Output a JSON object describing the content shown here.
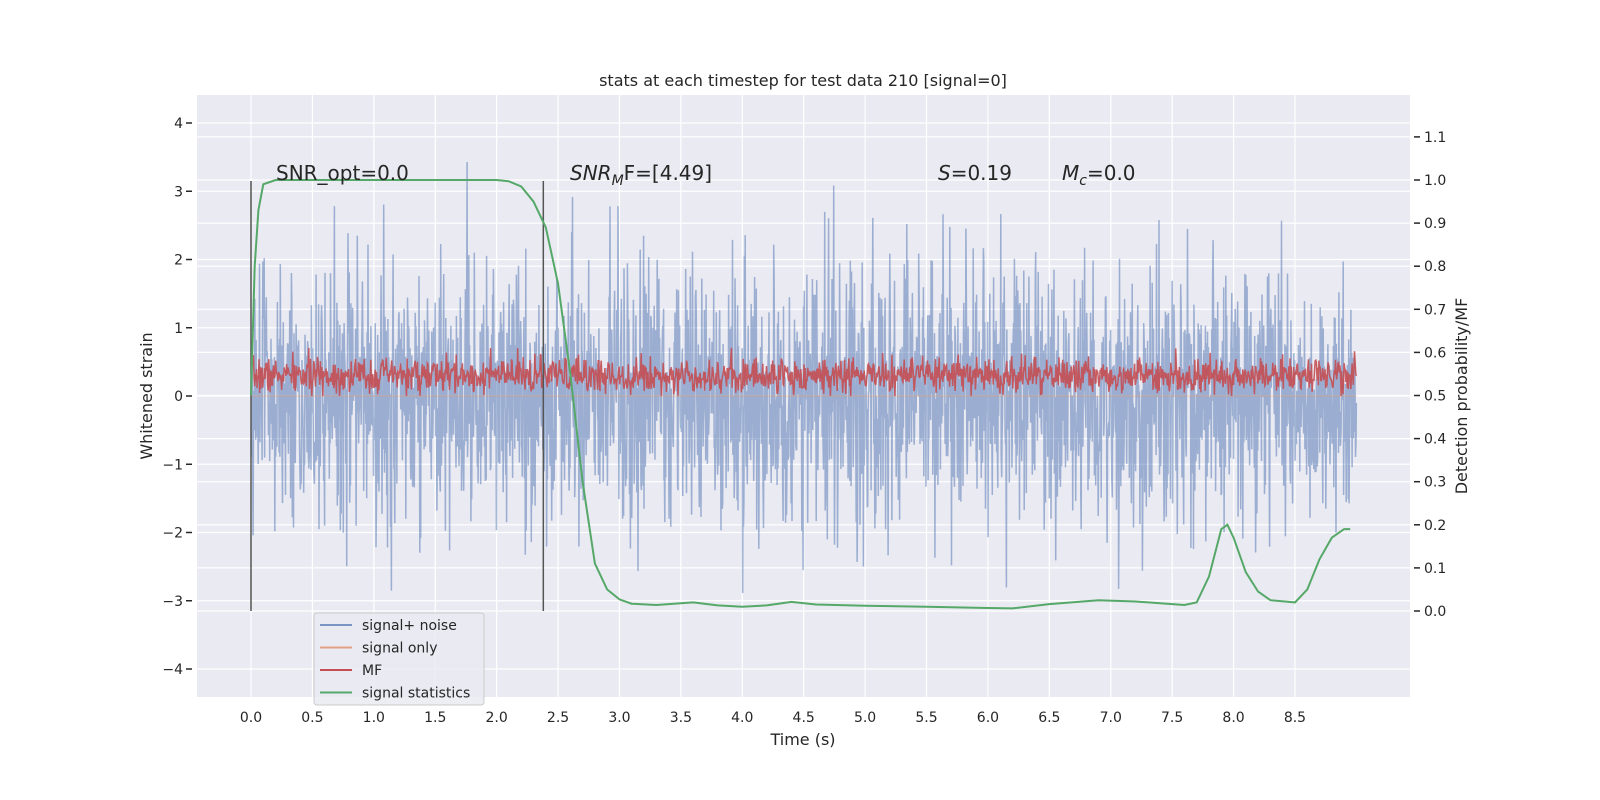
{
  "chart_data": {
    "type": "line",
    "title": "stats at each timestep for test data 210 [signal=0]",
    "xlabel": "Time (s)",
    "ylabel": "Whitened strain",
    "ylabel_right": "Detection probability/MF",
    "xlim": [
      -0.44,
      9.44
    ],
    "ylim": [
      -4.4,
      4.4
    ],
    "ylim_right": [
      -0.2,
      1.2
    ],
    "grid": true,
    "xticks": [
      "0.0",
      "0.5",
      "1.0",
      "1.5",
      "2.0",
      "2.5",
      "3.0",
      "3.5",
      "4.0",
      "4.5",
      "5.0",
      "5.5",
      "6.0",
      "6.5",
      "7.0",
      "7.5",
      "8.0",
      "8.5"
    ],
    "yticks": [
      "−4",
      "−3",
      "−2",
      "−1",
      "0",
      "1",
      "2",
      "3",
      "4"
    ],
    "yticks_right": [
      "0.0",
      "0.1",
      "0.2",
      "0.3",
      "0.4",
      "0.5",
      "0.6",
      "0.7",
      "0.8",
      "0.9",
      "1.0",
      "1.1"
    ],
    "annotations": [
      "SNR_opt=0.0",
      "SNR",
      "M",
      "F=[4.49]",
      "S",
      "=0.19",
      "M",
      "c",
      "=0.0"
    ],
    "legend": {
      "placement": "lower-left",
      "entries": [
        {
          "label": "signal+ noise",
          "color": "#4c72b0"
        },
        {
          "label": "signal only",
          "color": "#dd8452"
        },
        {
          "label": "MF",
          "color": "#c44e52"
        },
        {
          "label": "signal statistics",
          "color": "#55a868"
        }
      ]
    },
    "vertical_markers": {
      "x": [
        0.0,
        2.38
      ],
      "y_range": [
        -3.15,
        3.15
      ],
      "color": "#555555"
    },
    "series": [
      {
        "name": "signal+ noise",
        "axis": "left",
        "color": "#4c72b0",
        "generated": {
          "t_range": [
            0,
            9.0
          ],
          "samples": 2600,
          "std": 0.95,
          "mean": 0,
          "extreme_range": [
            -4.0,
            4.0
          ],
          "seed": 210
        }
      },
      {
        "name": "signal only",
        "axis": "left",
        "color": "#dd8452",
        "x": [
          0,
          9.0
        ],
        "y": [
          0,
          0
        ]
      },
      {
        "name": "MF",
        "axis": "left",
        "color": "#c44e52",
        "generated": {
          "t_range": [
            0,
            9.0
          ],
          "samples": 1800,
          "mean": 0.3,
          "std": 0.13,
          "min": 0.0,
          "max": 0.78,
          "seed": 7
        }
      },
      {
        "name": "signal statistics",
        "axis": "right",
        "color": "#55a868",
        "x": [
          0.0,
          0.03,
          0.06,
          0.1,
          0.2,
          0.5,
          1.0,
          1.5,
          2.0,
          2.1,
          2.2,
          2.3,
          2.4,
          2.5,
          2.6,
          2.7,
          2.8,
          2.9,
          3.0,
          3.1,
          3.3,
          3.5,
          3.6,
          3.8,
          4.0,
          4.2,
          4.4,
          4.6,
          5.0,
          5.5,
          6.0,
          6.2,
          6.5,
          6.9,
          7.2,
          7.6,
          7.7,
          7.8,
          7.9,
          7.95,
          8.0,
          8.1,
          8.2,
          8.3,
          8.5,
          8.6,
          8.7,
          8.8,
          8.9,
          8.95
        ],
        "y": [
          0.5,
          0.8,
          0.93,
          0.99,
          1.0,
          1.0,
          1.0,
          1.0,
          1.0,
          0.997,
          0.985,
          0.95,
          0.89,
          0.76,
          0.55,
          0.3,
          0.11,
          0.05,
          0.027,
          0.017,
          0.014,
          0.018,
          0.02,
          0.013,
          0.01,
          0.013,
          0.021,
          0.015,
          0.012,
          0.01,
          0.007,
          0.006,
          0.016,
          0.025,
          0.022,
          0.014,
          0.02,
          0.08,
          0.19,
          0.2,
          0.17,
          0.09,
          0.045,
          0.025,
          0.02,
          0.05,
          0.12,
          0.17,
          0.19,
          0.19
        ]
      }
    ]
  }
}
